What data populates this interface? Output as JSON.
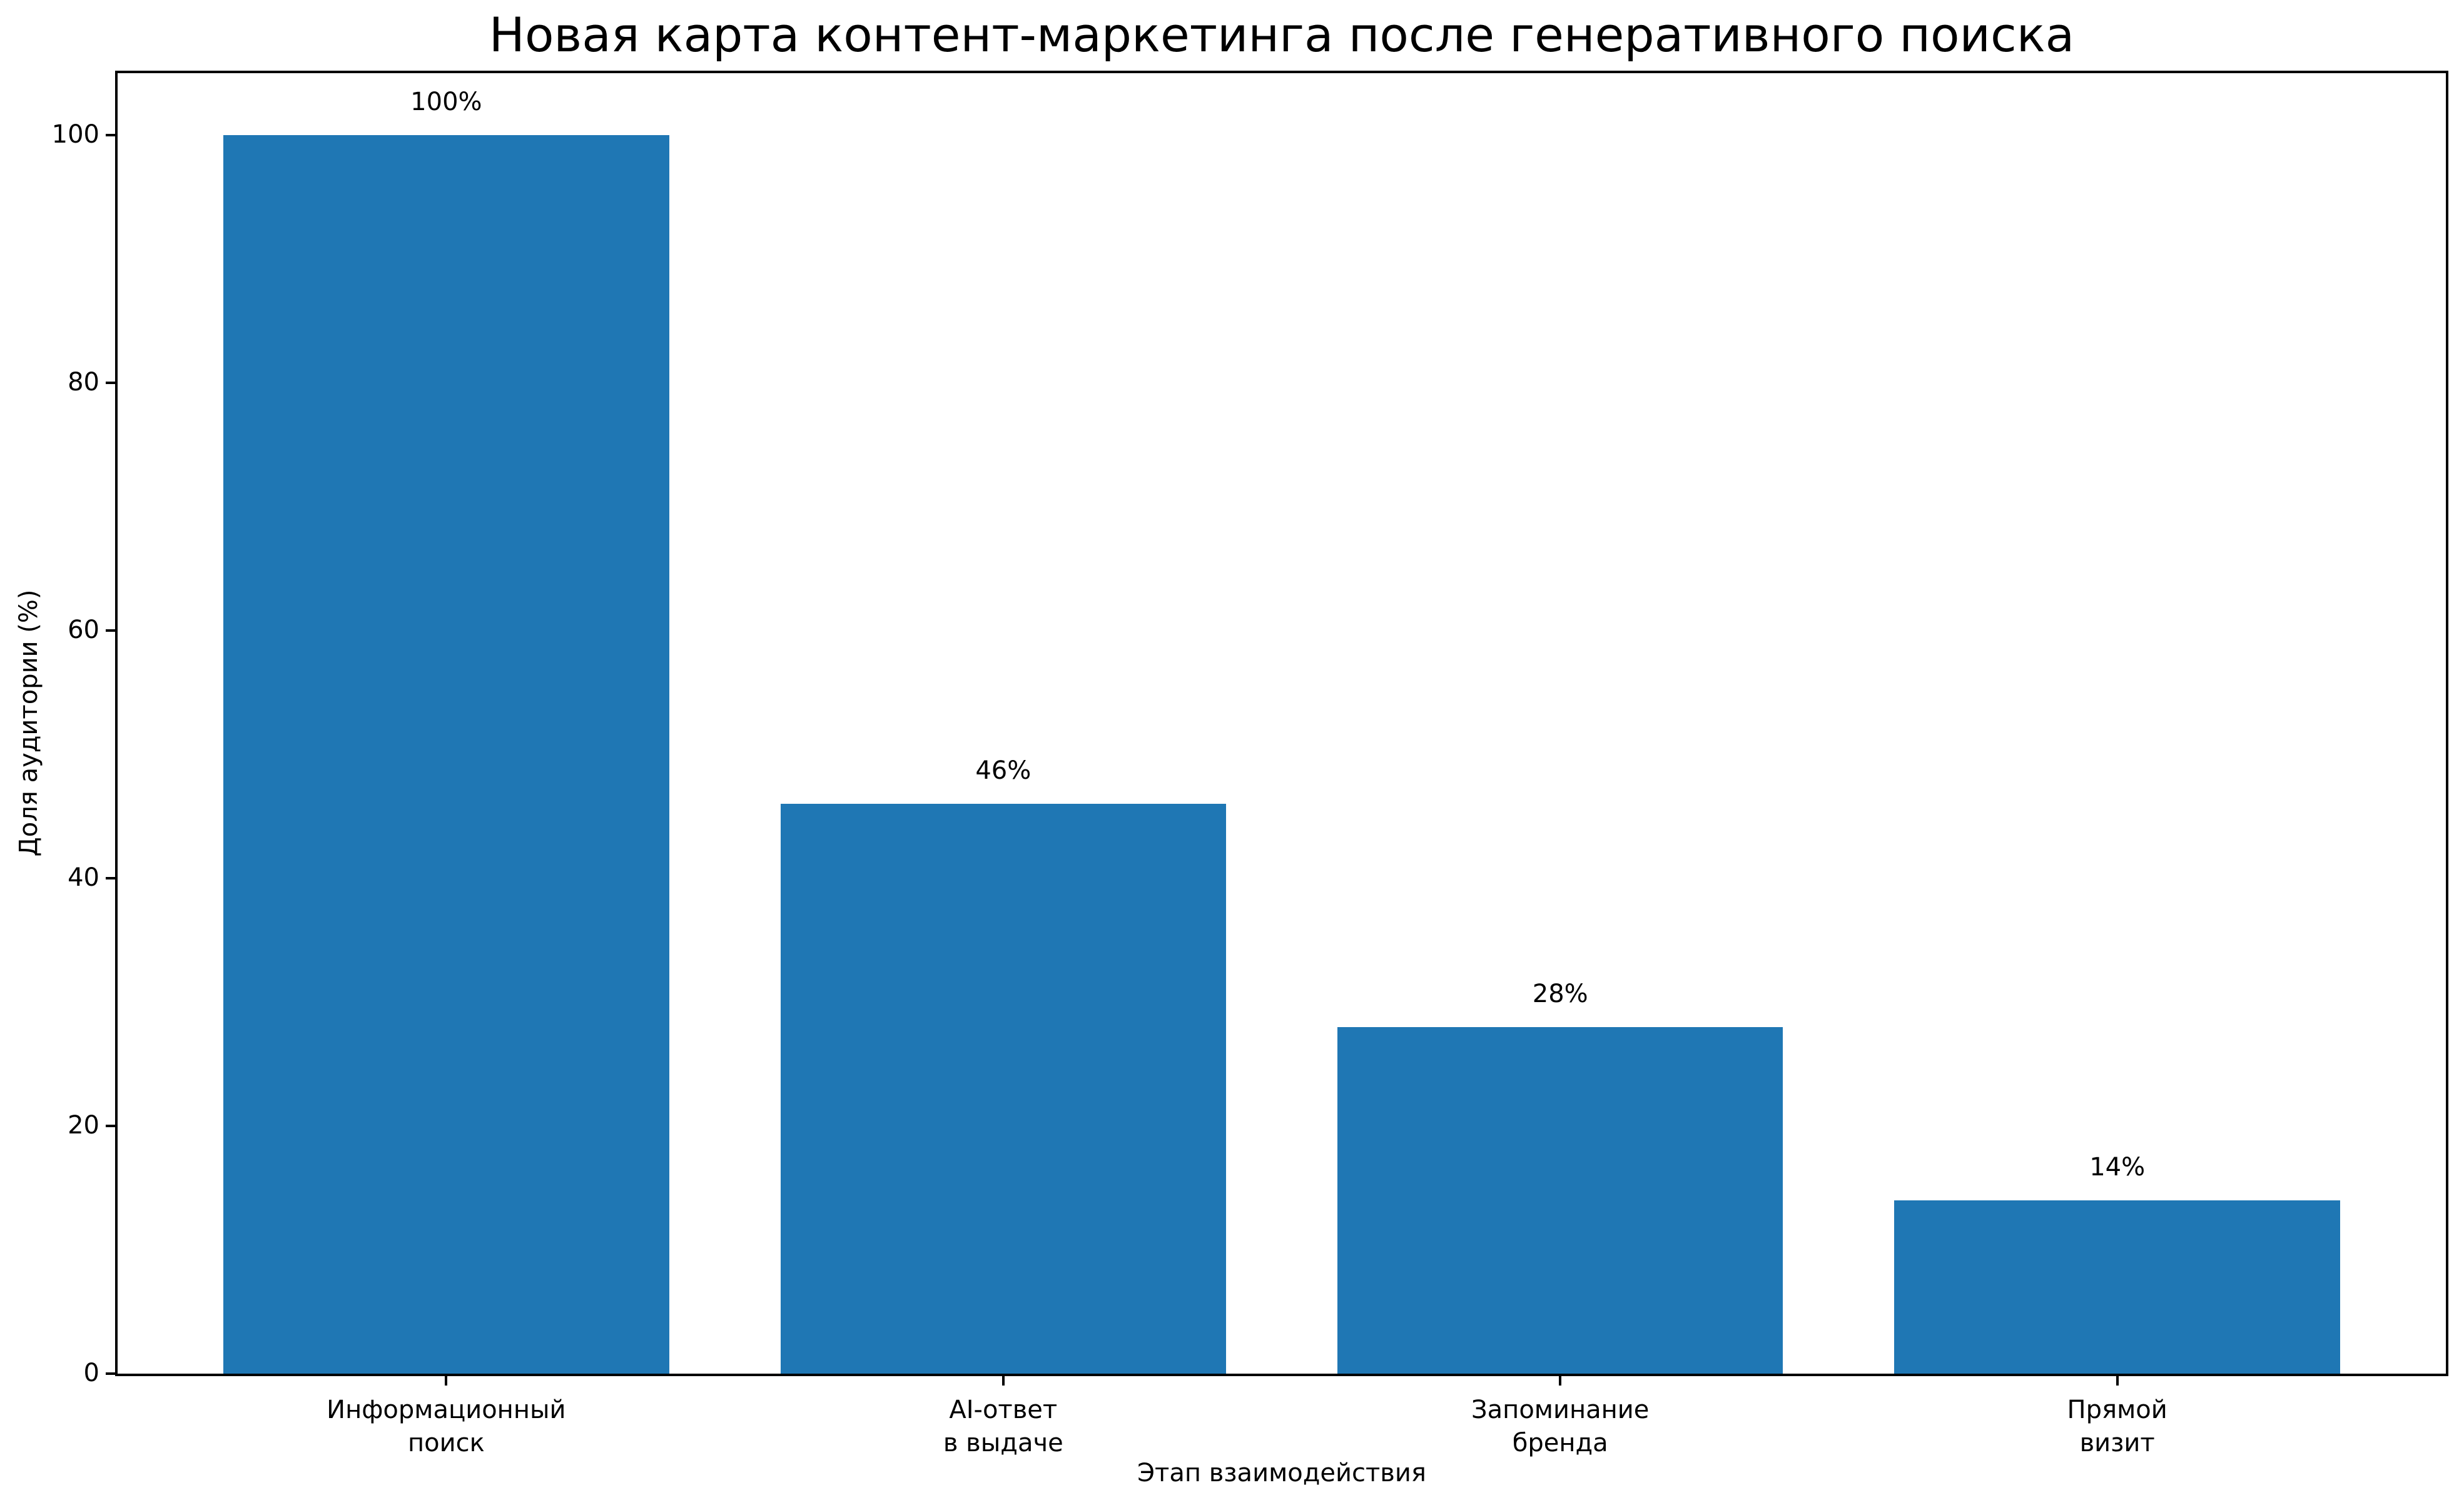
{
  "chart_data": {
    "type": "bar",
    "title": "Новая карта контент-маркетинга после генеративного поиска",
    "xlabel": "Этап взаимодействия",
    "ylabel": "Доля аудитории (%)",
    "categories": [
      [
        "Информационный",
        "поиск"
      ],
      [
        "AI-ответ",
        "в выдаче"
      ],
      [
        "Запоминание",
        "бренда"
      ],
      [
        "Прямой",
        "визит"
      ]
    ],
    "values": [
      100,
      46,
      28,
      14
    ],
    "value_labels": [
      "100%",
      "46%",
      "28%",
      "14%"
    ],
    "yticks": [
      0,
      20,
      40,
      60,
      80,
      100
    ],
    "ylim": [
      0,
      105
    ],
    "grid": false,
    "legend": "none",
    "colors": {
      "bar": "#1f77b4",
      "text": "#000000",
      "background": "#ffffff",
      "spine": "#000000"
    }
  }
}
